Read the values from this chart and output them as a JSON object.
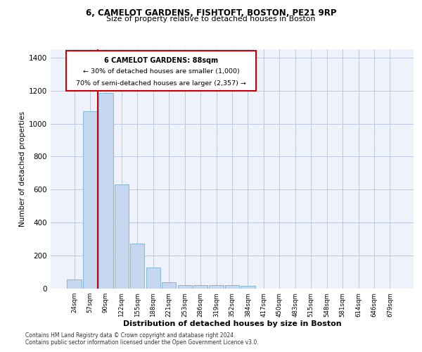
{
  "title1": "6, CAMELOT GARDENS, FISHTOFT, BOSTON, PE21 9RP",
  "title2": "Size of property relative to detached houses in Boston",
  "xlabel": "Distribution of detached houses by size in Boston",
  "ylabel": "Number of detached properties",
  "categories": [
    "24sqm",
    "57sqm",
    "90sqm",
    "122sqm",
    "155sqm",
    "188sqm",
    "221sqm",
    "253sqm",
    "286sqm",
    "319sqm",
    "352sqm",
    "384sqm",
    "417sqm",
    "450sqm",
    "483sqm",
    "515sqm",
    "548sqm",
    "581sqm",
    "614sqm",
    "646sqm",
    "679sqm"
  ],
  "values": [
    55,
    1075,
    1185,
    630,
    275,
    130,
    40,
    20,
    20,
    20,
    20,
    18,
    0,
    0,
    0,
    0,
    0,
    0,
    0,
    0,
    0
  ],
  "bar_color": "#c5d8f0",
  "bar_edge_color": "#7bafd4",
  "grid_color": "#c0c8e0",
  "bg_color": "#eef2fa",
  "annotation_box_color": "#cc0000",
  "vline_color": "#cc0000",
  "vline_x": 1.5,
  "annotation_text_line1": "6 CAMELOT GARDENS: 88sqm",
  "annotation_text_line2": "← 30% of detached houses are smaller (1,000)",
  "annotation_text_line3": "70% of semi-detached houses are larger (2,357) →",
  "footer1": "Contains HM Land Registry data © Crown copyright and database right 2024.",
  "footer2": "Contains public sector information licensed under the Open Government Licence v3.0.",
  "ylim": [
    0,
    1450
  ],
  "yticks": [
    0,
    200,
    400,
    600,
    800,
    1000,
    1200,
    1400
  ]
}
